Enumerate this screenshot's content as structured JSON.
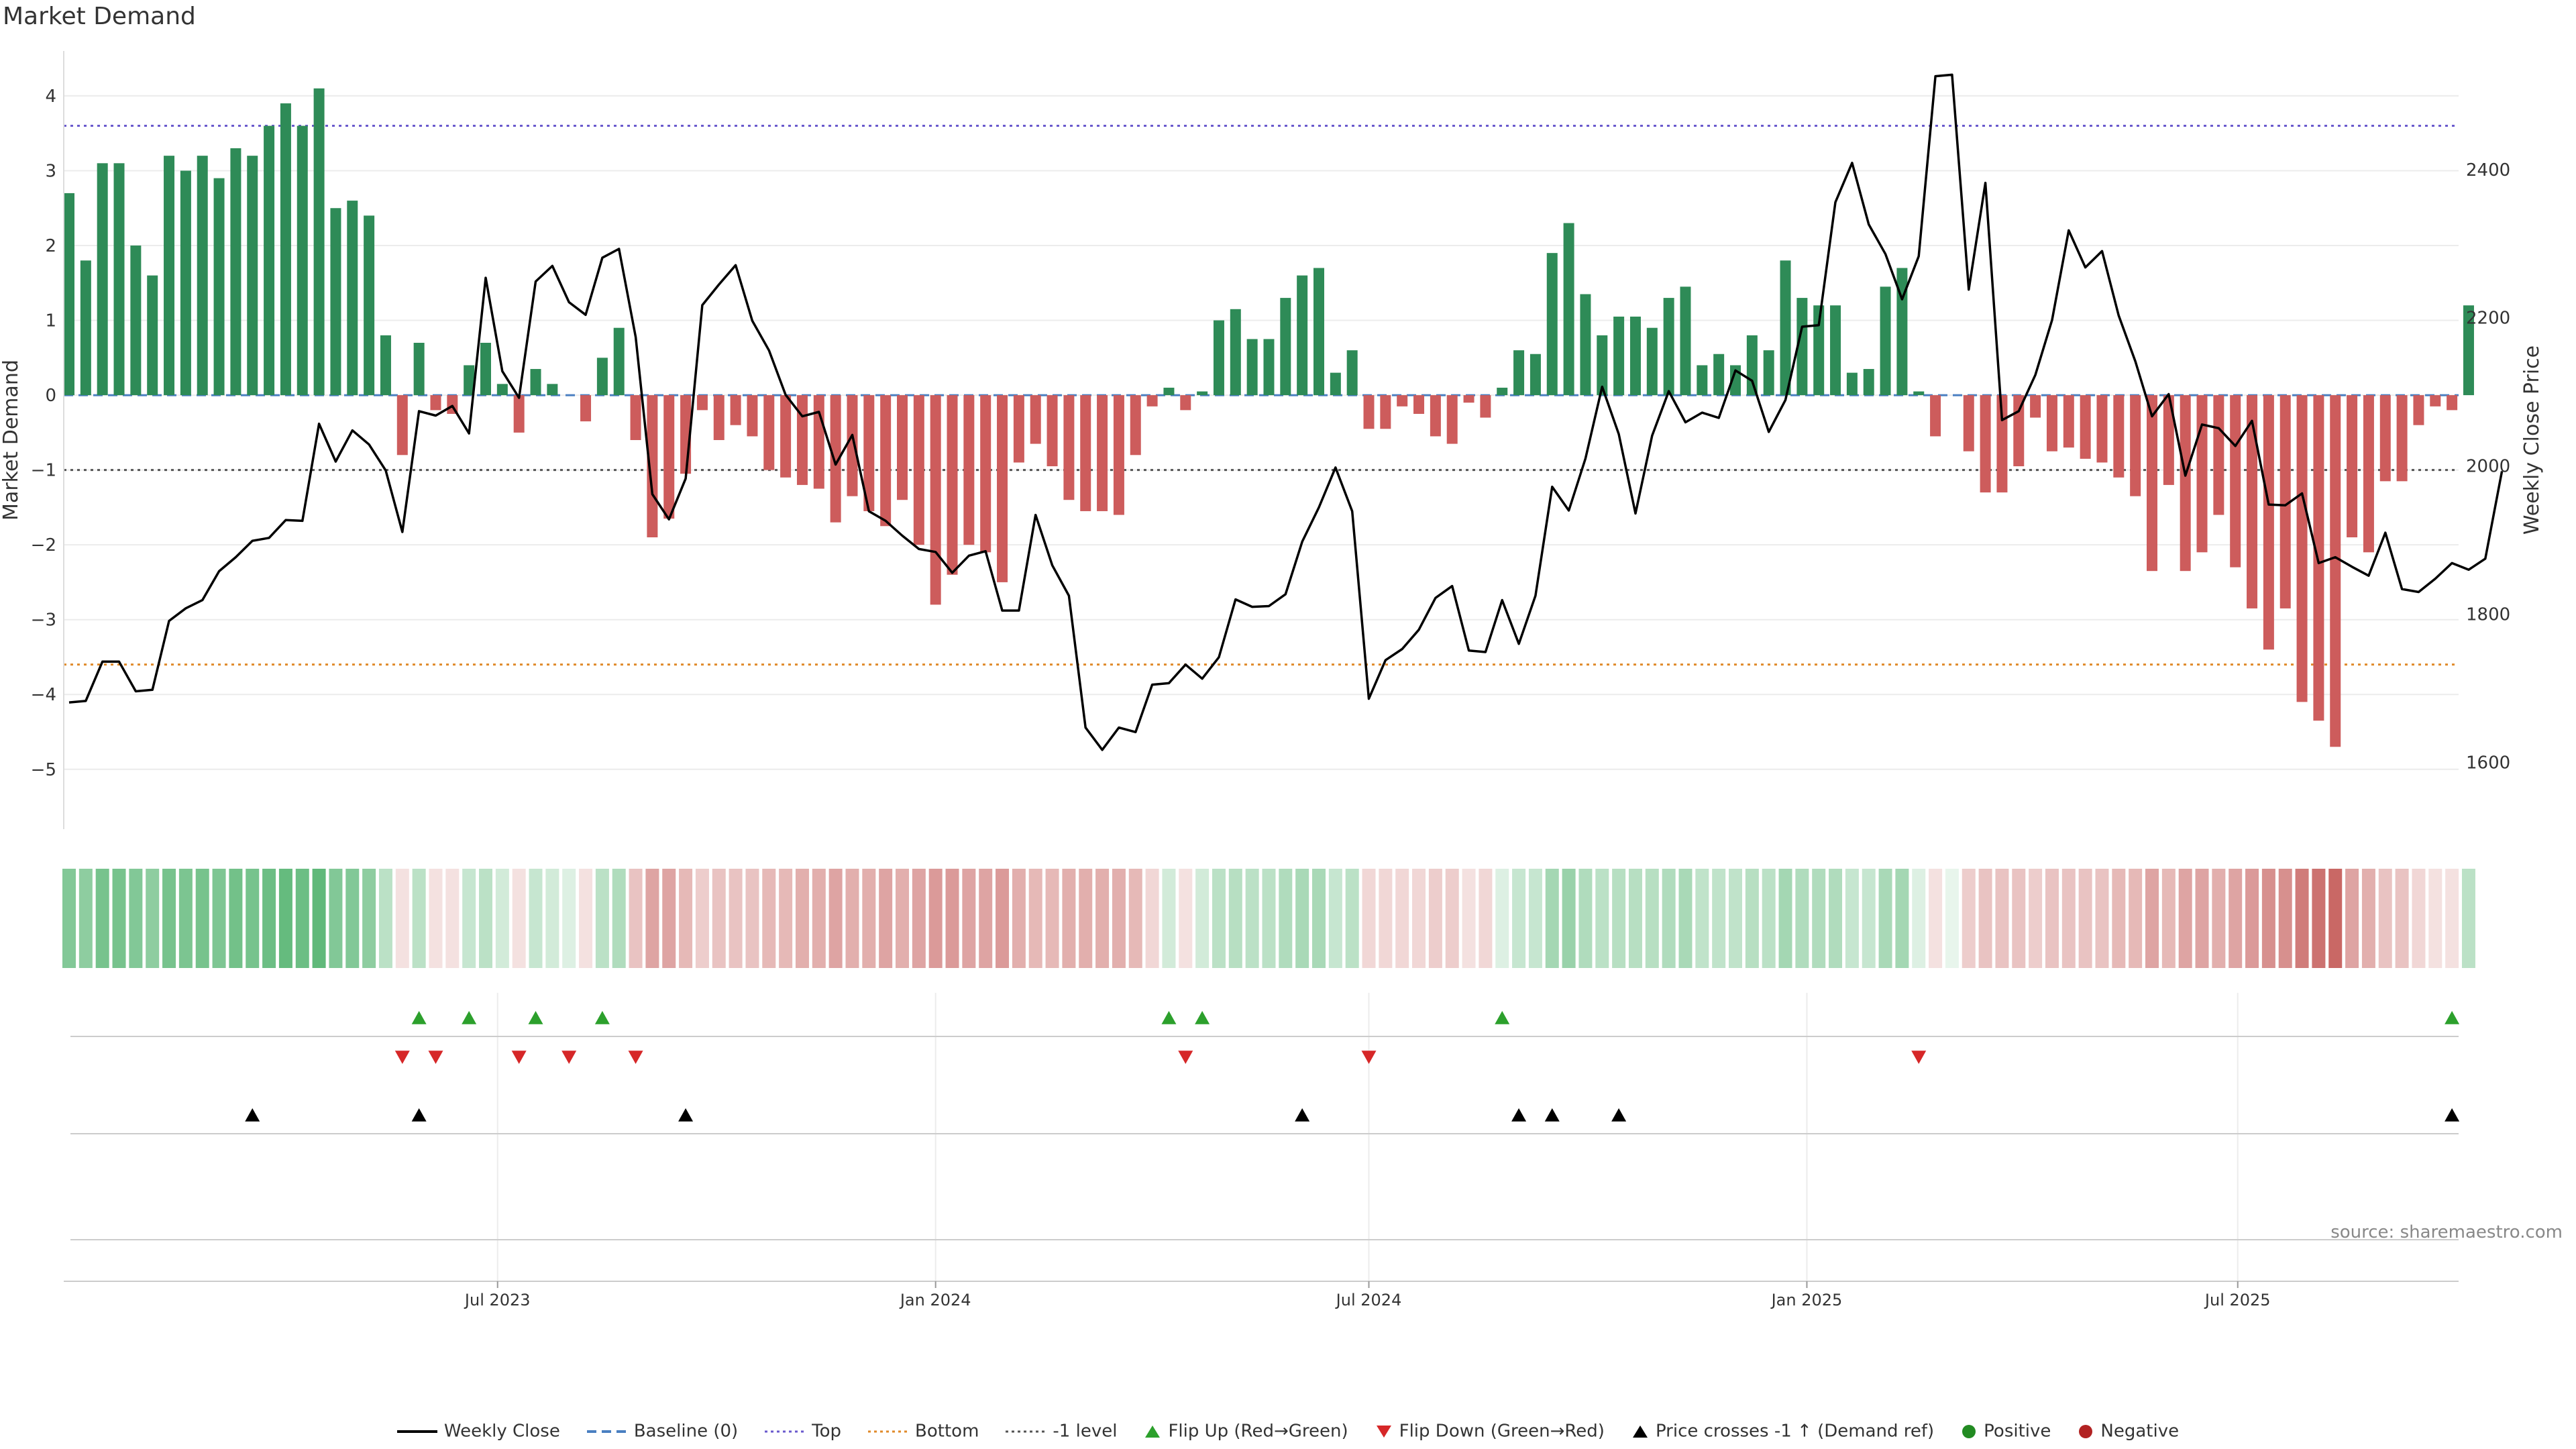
{
  "title": "Market Demand",
  "source": "source: sharemaestro.com",
  "colors": {
    "positive": "#2e8b57",
    "negative": "#cd5c5c",
    "price": "#000000",
    "top_line": "#6a5acd",
    "bottom_line": "#e08a2a",
    "minus1_line": "#555555",
    "baseline": "#4a7fc1",
    "flip_up": "#2ca02c",
    "flip_down": "#d62728",
    "cross": "#000000",
    "dot_pos": "#228b22",
    "dot_neg": "#b22222"
  },
  "chart_data": {
    "type": "bar",
    "start_date": "2023-01-02",
    "interval_days": 7,
    "left_axis": {
      "label": "Market Demand",
      "min": -5.8,
      "max": 4.6,
      "ticks": [
        4,
        3,
        2,
        1,
        0,
        -1,
        -2,
        -3,
        -4,
        -5
      ]
    },
    "right_axis": {
      "label": "Weekly Close Price",
      "min": 1510,
      "max": 2560,
      "ticks": [
        1600,
        1800,
        2000,
        2200,
        2400
      ]
    },
    "x_ticks": [
      {
        "label": "Jul 2023",
        "date": "2023-07-01"
      },
      {
        "label": "Jan 2024",
        "date": "2024-01-01"
      },
      {
        "label": "Jul 2024",
        "date": "2024-07-01"
      },
      {
        "label": "Jan 2025",
        "date": "2025-01-01"
      },
      {
        "label": "Jul 2025",
        "date": "2025-07-01"
      }
    ],
    "reference_lines": {
      "top": 3.6,
      "bottom": -3.6,
      "minus1": -1,
      "baseline": 0
    },
    "demand": [
      2.7,
      1.8,
      3.1,
      3.1,
      2.0,
      1.6,
      3.2,
      3.0,
      3.2,
      2.9,
      3.3,
      3.2,
      3.6,
      3.9,
      3.6,
      4.1,
      2.5,
      2.6,
      2.4,
      0.8,
      -0.8,
      0.7,
      -0.2,
      -0.25,
      0.4,
      0.7,
      0.15,
      -0.5,
      0.35,
      0.15,
      0,
      -0.35,
      0.5,
      0.9,
      -0.6,
      -1.9,
      -1.65,
      -1.05,
      -0.2,
      -0.6,
      -0.4,
      -0.55,
      -1.0,
      -1.1,
      -1.2,
      -1.25,
      -1.7,
      -1.35,
      -1.55,
      -1.75,
      -1.4,
      -2.0,
      -2.8,
      -2.4,
      -2.0,
      -2.1,
      -2.5,
      -0.9,
      -0.65,
      -0.95,
      -1.4,
      -1.55,
      -1.55,
      -1.6,
      -0.8,
      -0.15,
      0.1,
      -0.2,
      0.05,
      1.0,
      1.15,
      0.75,
      0.75,
      1.3,
      1.6,
      1.7,
      0.3,
      0.6,
      -0.45,
      -0.45,
      -0.15,
      -0.25,
      -0.55,
      -0.65,
      -0.1,
      -0.3,
      0.1,
      0.6,
      0.55,
      1.9,
      2.3,
      1.35,
      0.8,
      1.05,
      1.05,
      0.9,
      1.3,
      1.45,
      0.4,
      0.55,
      0.4,
      0.8,
      0.6,
      1.8,
      1.3,
      1.2,
      1.2,
      0.3,
      0.35,
      1.45,
      1.7,
      0.05,
      -0.55,
      0,
      -0.75,
      -1.3,
      -1.3,
      -0.95,
      -0.3,
      -0.75,
      -0.7,
      -0.85,
      -0.9,
      -1.1,
      -1.35,
      -2.35,
      -1.2,
      -2.35,
      -2.1,
      -1.6,
      -2.3,
      -2.85,
      -3.4,
      -2.85,
      -4.1,
      -4.35,
      -4.7,
      -1.9,
      -2.1,
      -1.15,
      -1.15,
      -0.4,
      -0.15,
      -0.2,
      1.2
    ],
    "price": [
      1681,
      1683,
      1736,
      1736,
      1696,
      1698,
      1791,
      1808,
      1819,
      1858,
      1877,
      1899,
      1903,
      1927,
      1926,
      2057,
      2006,
      2048,
      2029,
      1994,
      1911,
      2074,
      2068,
      2081,
      2044,
      2254,
      2128,
      2092,
      2249,
      2270,
      2221,
      2204,
      2281,
      2293,
      2174,
      1962,
      1928,
      1983,
      2217,
      2245,
      2271,
      2196,
      2156,
      2096,
      2067,
      2073,
      2002,
      2042,
      1939,
      1926,
      1906,
      1888,
      1884,
      1856,
      1879,
      1885,
      1805,
      1805,
      1934,
      1866,
      1825,
      1647,
      1617,
      1647,
      1641,
      1705,
      1707,
      1732,
      1713,
      1742,
      1820,
      1810,
      1811,
      1827,
      1898,
      1944,
      1998,
      1939,
      1686,
      1738,
      1753,
      1779,
      1822,
      1838,
      1751,
      1749,
      1819,
      1760,
      1825,
      1972,
      1940,
      2010,
      2107,
      2043,
      1936,
      2041,
      2101,
      2059,
      2072,
      2065,
      2129,
      2115,
      2046,
      2089,
      2188,
      2190,
      2356,
      2409,
      2326,
      2286,
      2225,
      2283,
      2526,
      2528,
      2238,
      2382,
      2062,
      2074,
      2123,
      2197,
      2318,
      2268,
      2290,
      2203,
      2141,
      2067,
      2097,
      1987,
      2056,
      2051,
      2027,
      2061,
      1948,
      1947,
      1963,
      1869,
      1877,
      1864,
      1852,
      1910,
      1834,
      1830,
      1848,
      1869,
      1860,
      1875,
      1993
    ],
    "intensity": [
      0.55,
      0.5,
      0.6,
      0.6,
      0.55,
      0.5,
      0.6,
      0.58,
      0.6,
      0.57,
      0.62,
      0.6,
      0.65,
      0.68,
      0.65,
      0.7,
      0.55,
      0.55,
      0.5,
      0.3,
      -0.15,
      0.3,
      -0.15,
      -0.15,
      0.25,
      0.3,
      0.2,
      -0.15,
      0.25,
      0.2,
      0.15,
      -0.15,
      0.3,
      0.35,
      -0.3,
      -0.45,
      -0.45,
      -0.35,
      -0.25,
      -0.3,
      -0.3,
      -0.3,
      -0.35,
      -0.35,
      -0.4,
      -0.4,
      -0.45,
      -0.4,
      -0.4,
      -0.45,
      -0.4,
      -0.45,
      -0.5,
      -0.5,
      -0.45,
      -0.45,
      -0.5,
      -0.4,
      -0.35,
      -0.35,
      -0.4,
      -0.4,
      -0.4,
      -0.4,
      -0.35,
      -0.2,
      0.2,
      -0.15,
      0.2,
      0.3,
      0.32,
      0.3,
      0.3,
      0.35,
      0.38,
      0.38,
      0.25,
      0.3,
      -0.2,
      -0.2,
      -0.2,
      -0.2,
      -0.25,
      -0.25,
      -0.15,
      -0.2,
      0.15,
      0.25,
      0.25,
      0.4,
      0.45,
      0.35,
      0.3,
      0.32,
      0.32,
      0.32,
      0.35,
      0.38,
      0.28,
      0.28,
      0.28,
      0.32,
      0.3,
      0.4,
      0.35,
      0.35,
      0.35,
      0.25,
      0.25,
      0.38,
      0.4,
      0.15,
      -0.15,
      0.1,
      -0.25,
      -0.3,
      -0.3,
      -0.3,
      -0.25,
      -0.3,
      -0.3,
      -0.3,
      -0.3,
      -0.35,
      -0.35,
      -0.45,
      -0.35,
      -0.45,
      -0.45,
      -0.4,
      -0.45,
      -0.5,
      -0.55,
      -0.55,
      -0.65,
      -0.7,
      -0.75,
      -0.45,
      -0.4,
      -0.3,
      -0.3,
      -0.2,
      -0.15,
      -0.15,
      0.3
    ],
    "flip_up_idx": [
      21,
      24,
      28,
      32,
      66,
      68,
      86,
      143
    ],
    "flip_down_idx": [
      20,
      22,
      27,
      30,
      34,
      67,
      78,
      111
    ],
    "cross_idx": [
      11,
      21,
      37,
      74,
      87,
      89,
      93,
      143
    ],
    "legend": [
      {
        "label": "Weekly Close",
        "kind": "line-solid",
        "color": "#000000"
      },
      {
        "label": "Baseline (0)",
        "kind": "line-dash",
        "color": "#4a7fc1"
      },
      {
        "label": "Top",
        "kind": "line-dot",
        "color": "#6a5acd"
      },
      {
        "label": "Bottom",
        "kind": "line-dot",
        "color": "#e08a2a"
      },
      {
        "label": "-1 level",
        "kind": "line-dot",
        "color": "#555555"
      },
      {
        "label": "Flip Up (Red→Green)",
        "kind": "tri-up",
        "color": "#2ca02c"
      },
      {
        "label": "Flip Down (Green→Red)",
        "kind": "tri-down",
        "color": "#d62728"
      },
      {
        "label": "Price crosses -1 ↑ (Demand ref)",
        "kind": "tri-up",
        "color": "#000000"
      },
      {
        "label": "Positive",
        "kind": "dot",
        "color": "#228b22"
      },
      {
        "label": "Negative",
        "kind": "dot",
        "color": "#b22222"
      }
    ]
  }
}
